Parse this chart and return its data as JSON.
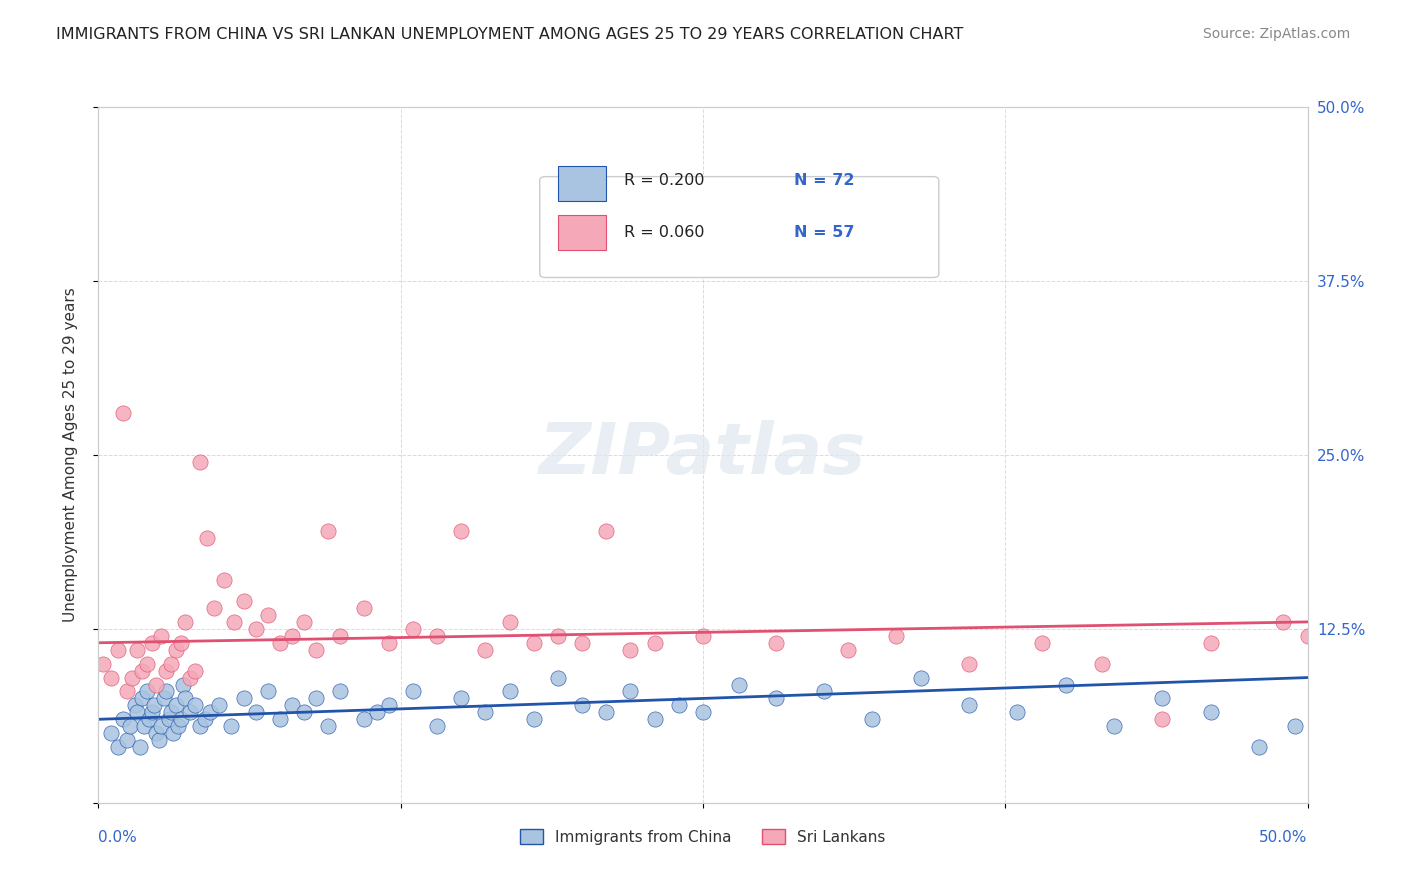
{
  "title": "IMMIGRANTS FROM CHINA VS SRI LANKAN UNEMPLOYMENT AMONG AGES 25 TO 29 YEARS CORRELATION CHART",
  "source": "Source: ZipAtlas.com",
  "ylabel": "Unemployment Among Ages 25 to 29 years",
  "right_yticklabels": [
    "",
    "12.5%",
    "25.0%",
    "37.5%",
    "50.0%"
  ],
  "legend_series1_label": "Immigrants from China",
  "legend_series1_R": "R = 0.200",
  "legend_series1_N": "N = 72",
  "legend_series2_label": "Sri Lankans",
  "legend_series2_R": "R = 0.060",
  "legend_series2_N": "N = 57",
  "watermark": "ZIPatlas",
  "color_blue": "#a8c4e0",
  "color_blue_line": "#2255aa",
  "color_pink": "#f4a8b8",
  "color_pink_line": "#e05070",
  "color_legend_text": "#333333",
  "color_RN_text": "#3366cc",
  "blue_scatter_x": [
    0.005,
    0.008,
    0.01,
    0.012,
    0.013,
    0.015,
    0.016,
    0.017,
    0.018,
    0.019,
    0.02,
    0.021,
    0.022,
    0.023,
    0.024,
    0.025,
    0.026,
    0.027,
    0.028,
    0.029,
    0.03,
    0.031,
    0.032,
    0.033,
    0.034,
    0.035,
    0.036,
    0.038,
    0.04,
    0.042,
    0.044,
    0.046,
    0.05,
    0.055,
    0.06,
    0.065,
    0.07,
    0.075,
    0.08,
    0.085,
    0.09,
    0.095,
    0.1,
    0.11,
    0.115,
    0.12,
    0.13,
    0.14,
    0.15,
    0.16,
    0.17,
    0.18,
    0.19,
    0.2,
    0.21,
    0.22,
    0.23,
    0.24,
    0.25,
    0.265,
    0.28,
    0.3,
    0.32,
    0.34,
    0.36,
    0.38,
    0.4,
    0.42,
    0.44,
    0.46,
    0.48,
    0.495
  ],
  "blue_scatter_y": [
    0.05,
    0.04,
    0.06,
    0.045,
    0.055,
    0.07,
    0.065,
    0.04,
    0.075,
    0.055,
    0.08,
    0.06,
    0.065,
    0.07,
    0.05,
    0.045,
    0.055,
    0.075,
    0.08,
    0.06,
    0.065,
    0.05,
    0.07,
    0.055,
    0.06,
    0.085,
    0.075,
    0.065,
    0.07,
    0.055,
    0.06,
    0.065,
    0.07,
    0.055,
    0.075,
    0.065,
    0.08,
    0.06,
    0.07,
    0.065,
    0.075,
    0.055,
    0.08,
    0.06,
    0.065,
    0.07,
    0.08,
    0.055,
    0.075,
    0.065,
    0.08,
    0.06,
    0.09,
    0.07,
    0.065,
    0.08,
    0.06,
    0.07,
    0.065,
    0.085,
    0.075,
    0.08,
    0.06,
    0.09,
    0.07,
    0.065,
    0.085,
    0.055,
    0.075,
    0.065,
    0.04,
    0.055
  ],
  "pink_scatter_x": [
    0.002,
    0.005,
    0.008,
    0.01,
    0.012,
    0.014,
    0.016,
    0.018,
    0.02,
    0.022,
    0.024,
    0.026,
    0.028,
    0.03,
    0.032,
    0.034,
    0.036,
    0.038,
    0.04,
    0.042,
    0.045,
    0.048,
    0.052,
    0.056,
    0.06,
    0.065,
    0.07,
    0.075,
    0.08,
    0.085,
    0.09,
    0.095,
    0.1,
    0.11,
    0.12,
    0.13,
    0.14,
    0.15,
    0.16,
    0.17,
    0.18,
    0.19,
    0.2,
    0.21,
    0.22,
    0.23,
    0.25,
    0.28,
    0.31,
    0.33,
    0.36,
    0.39,
    0.415,
    0.44,
    0.46,
    0.49,
    0.5
  ],
  "pink_scatter_y": [
    0.1,
    0.09,
    0.11,
    0.28,
    0.08,
    0.09,
    0.11,
    0.095,
    0.1,
    0.115,
    0.085,
    0.12,
    0.095,
    0.1,
    0.11,
    0.115,
    0.13,
    0.09,
    0.095,
    0.245,
    0.19,
    0.14,
    0.16,
    0.13,
    0.145,
    0.125,
    0.135,
    0.115,
    0.12,
    0.13,
    0.11,
    0.195,
    0.12,
    0.14,
    0.115,
    0.125,
    0.12,
    0.195,
    0.11,
    0.13,
    0.115,
    0.12,
    0.115,
    0.195,
    0.11,
    0.115,
    0.12,
    0.115,
    0.11,
    0.12,
    0.1,
    0.115,
    0.1,
    0.06,
    0.115,
    0.13,
    0.12
  ],
  "blue_trend_x": [
    0.0,
    0.5
  ],
  "blue_trend_y": [
    0.06,
    0.09
  ],
  "pink_trend_x": [
    0.0,
    0.5
  ],
  "pink_trend_y": [
    0.115,
    0.13
  ],
  "xlim": [
    0.0,
    0.5
  ],
  "ylim": [
    0.0,
    0.5
  ]
}
